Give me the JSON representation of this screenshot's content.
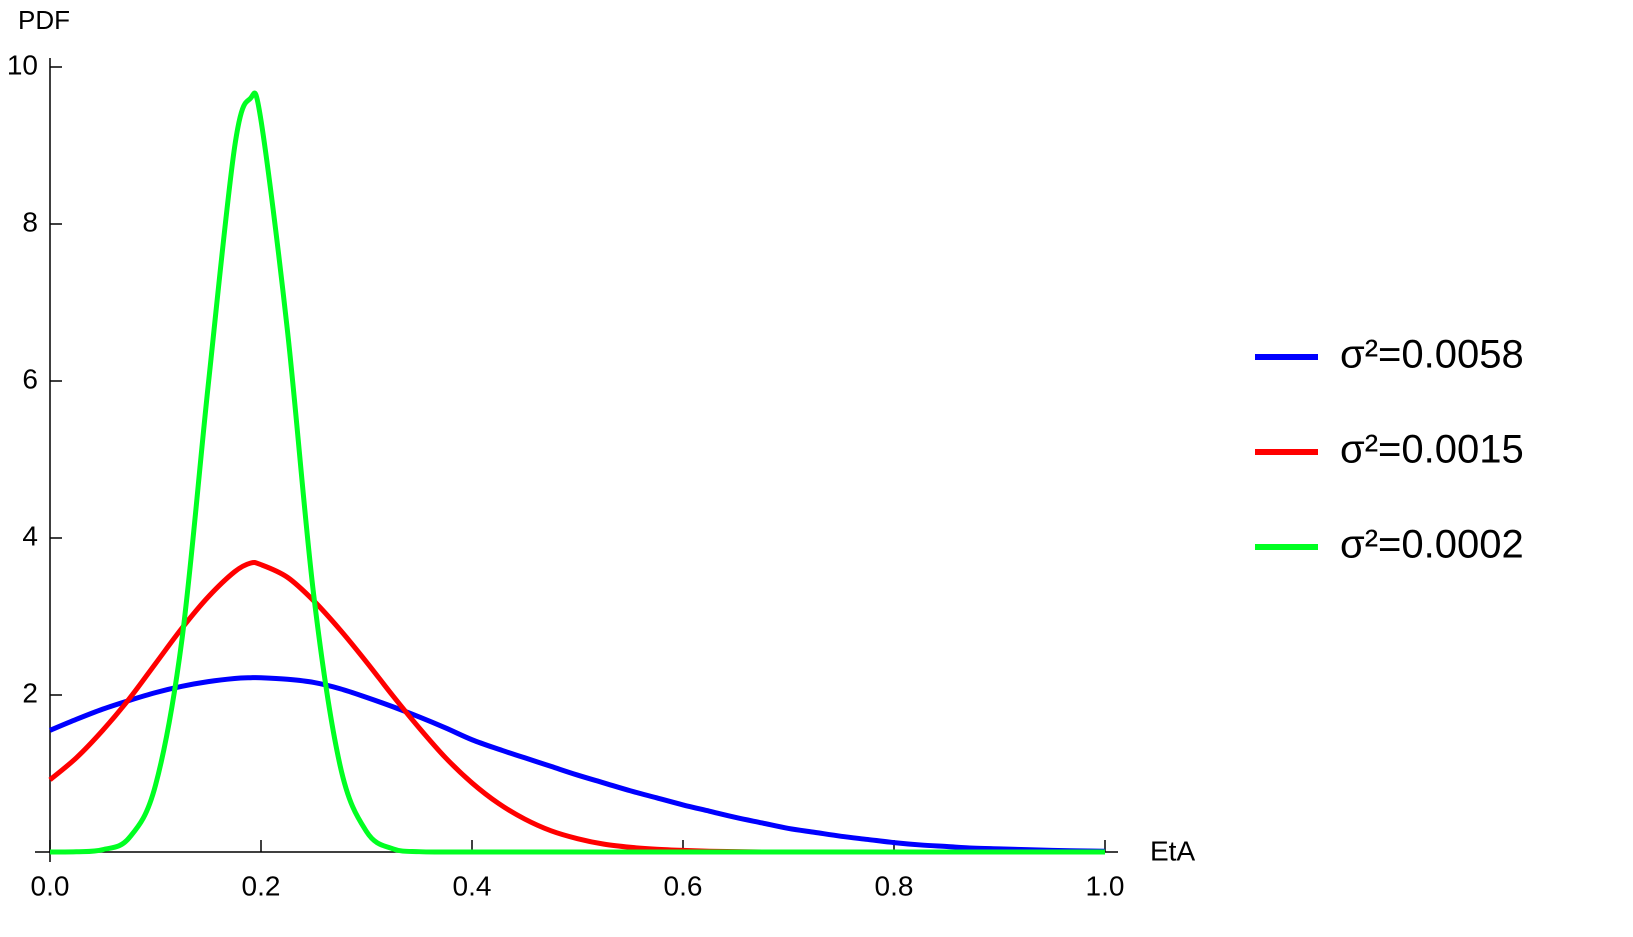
{
  "chart_data": {
    "type": "line",
    "x_label": "EtA",
    "y_label": "PDF",
    "x": [
      0,
      0.025,
      0.05,
      0.075,
      0.1,
      0.125,
      0.15,
      0.175,
      0.19,
      0.2,
      0.225,
      0.25,
      0.275,
      0.3,
      0.325,
      0.35,
      0.375,
      0.4,
      0.425,
      0.45,
      0.475,
      0.5,
      0.525,
      0.55,
      0.575,
      0.6,
      0.625,
      0.65,
      0.675,
      0.7,
      0.725,
      0.75,
      0.775,
      0.8,
      0.825,
      0.85,
      0.875,
      0.9,
      0.925,
      0.95,
      0.975,
      1
    ],
    "series": [
      {
        "name": "σ²=0.0058",
        "color": "#0000ff",
        "values": [
          1.55,
          1.69,
          1.82,
          1.93,
          2.03,
          2.11,
          2.17,
          2.21,
          2.22,
          2.22,
          2.2,
          2.16,
          2.08,
          1.97,
          1.85,
          1.72,
          1.58,
          1.43,
          1.31,
          1.2,
          1.09,
          0.98,
          0.88,
          0.78,
          0.69,
          0.6,
          0.52,
          0.44,
          0.37,
          0.3,
          0.25,
          0.2,
          0.16,
          0.12,
          0.09,
          0.07,
          0.05,
          0.04,
          0.03,
          0.02,
          0.015,
          0.01
        ]
      },
      {
        "name": "σ²=0.0015",
        "color": "#ff0000",
        "values": [
          0.92,
          1.2,
          1.55,
          1.95,
          2.4,
          2.85,
          3.25,
          3.57,
          3.68,
          3.66,
          3.5,
          3.2,
          2.83,
          2.42,
          1.99,
          1.58,
          1.2,
          0.88,
          0.62,
          0.42,
          0.27,
          0.17,
          0.1,
          0.06,
          0.035,
          0.02,
          0.01,
          0.005,
          0,
          0,
          0,
          0,
          0,
          0,
          0,
          0,
          0,
          0,
          0,
          0,
          0,
          0
        ]
      },
      {
        "name": "σ²=0.0002",
        "color": "#00ff22",
        "values": [
          0,
          0.003,
          0.03,
          0.18,
          0.85,
          2.7,
          5.95,
          8.98,
          9.6,
          9.32,
          6.65,
          3.27,
          1.1,
          0.26,
          0.04,
          0.004,
          0,
          0,
          0,
          0,
          0,
          0,
          0,
          0,
          0,
          0,
          0,
          0,
          0,
          0,
          0,
          0,
          0,
          0,
          0,
          0,
          0,
          0,
          0,
          0,
          0,
          0
        ]
      }
    ],
    "xlim": [
      0,
      1
    ],
    "ylim": [
      0,
      10
    ],
    "xticks": [
      {
        "value": 0,
        "label": "0.0"
      },
      {
        "value": 0.2,
        "label": "0.2"
      },
      {
        "value": 0.4,
        "label": "0.4"
      },
      {
        "value": 0.6,
        "label": "0.6"
      },
      {
        "value": 0.8,
        "label": "0.8"
      },
      {
        "value": 1,
        "label": "1.0"
      }
    ],
    "yticks": [
      2,
      4,
      6,
      8,
      10
    ],
    "grid": false,
    "legend": "right"
  }
}
